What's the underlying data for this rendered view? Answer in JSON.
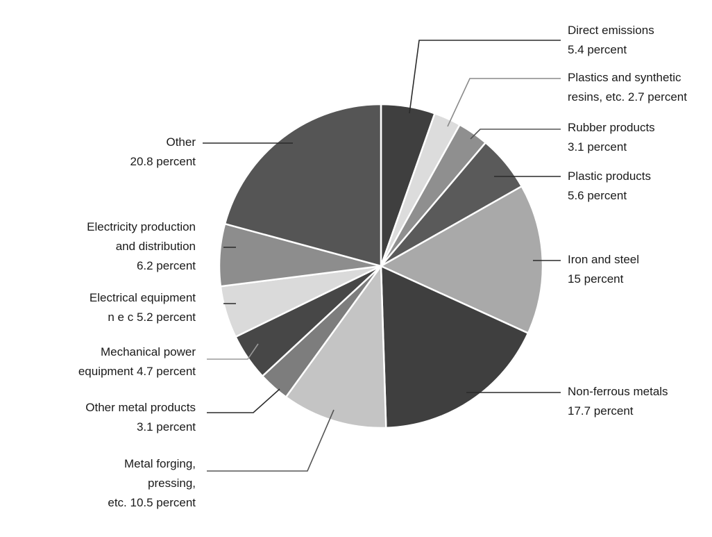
{
  "chart_data": {
    "type": "pie",
    "title": "",
    "start": "12 o'clock",
    "direction": "clockwise",
    "legend": "none",
    "slices": [
      {
        "name": "Direct emissions",
        "lines": [
          "Direct emissions",
          "5.4 percent"
        ],
        "value": 5.4,
        "color": "#3f3f3f",
        "leader_color": "#2a2a2a"
      },
      {
        "name": "Plastics and synthetic resins, etc.",
        "lines": [
          "Plastics and synthetic",
          "resins, etc. 2.7 percent"
        ],
        "value": 2.7,
        "color": "#dcdcdc",
        "leader_color": "#8a8a8a"
      },
      {
        "name": "Rubber products",
        "lines": [
          "Rubber products",
          "3.1 percent"
        ],
        "value": 3.1,
        "color": "#8f8f8f",
        "leader_color": "#555555"
      },
      {
        "name": "Plastic products",
        "lines": [
          "Plastic products",
          "5.6 percent"
        ],
        "value": 5.6,
        "color": "#5a5a5a",
        "leader_color": "#2a2a2a"
      },
      {
        "name": "Iron and steel",
        "lines": [
          "Iron and steel",
          "15 percent"
        ],
        "value": 15,
        "color": "#a9a9a9",
        "leader_color": "#2a2a2a"
      },
      {
        "name": "Non-ferrous metals",
        "lines": [
          "Non-ferrous metals",
          "17.7 percent"
        ],
        "value": 17.7,
        "color": "#3f3f3f",
        "leader_color": "#2a2a2a"
      },
      {
        "name": "Metal forging, pressing, etc.",
        "lines": [
          "Metal forging,",
          "pressing,",
          "etc. 10.5 percent"
        ],
        "value": 10.5,
        "color": "#c4c4c4",
        "leader_color": "#555555"
      },
      {
        "name": "Other metal products",
        "lines": [
          "Other metal products",
          "3.1 percent"
        ],
        "value": 3.1,
        "color": "#7d7d7d",
        "leader_color": "#2a2a2a"
      },
      {
        "name": "Mechanical power equipment",
        "lines": [
          "Mechanical power",
          "equipment 4.7 percent"
        ],
        "value": 4.7,
        "color": "#474747",
        "leader_color": "#9a9a9a"
      },
      {
        "name": "Electrical equipment n e c",
        "lines": [
          "Electrical equipment",
          "n e c 5.2 percent"
        ],
        "value": 5.2,
        "color": "#dadada",
        "leader_color": "#2a2a2a"
      },
      {
        "name": "Electricity production and distribution",
        "lines": [
          "Electricity production",
          "and distribution",
          "6.2 percent"
        ],
        "value": 6.2,
        "color": "#8d8d8d",
        "leader_color": "#2a2a2a"
      },
      {
        "name": "Other",
        "lines": [
          "Other",
          "20.8 percent"
        ],
        "value": 20.8,
        "color": "#555555",
        "leader_color": "#2a2a2a"
      }
    ]
  }
}
